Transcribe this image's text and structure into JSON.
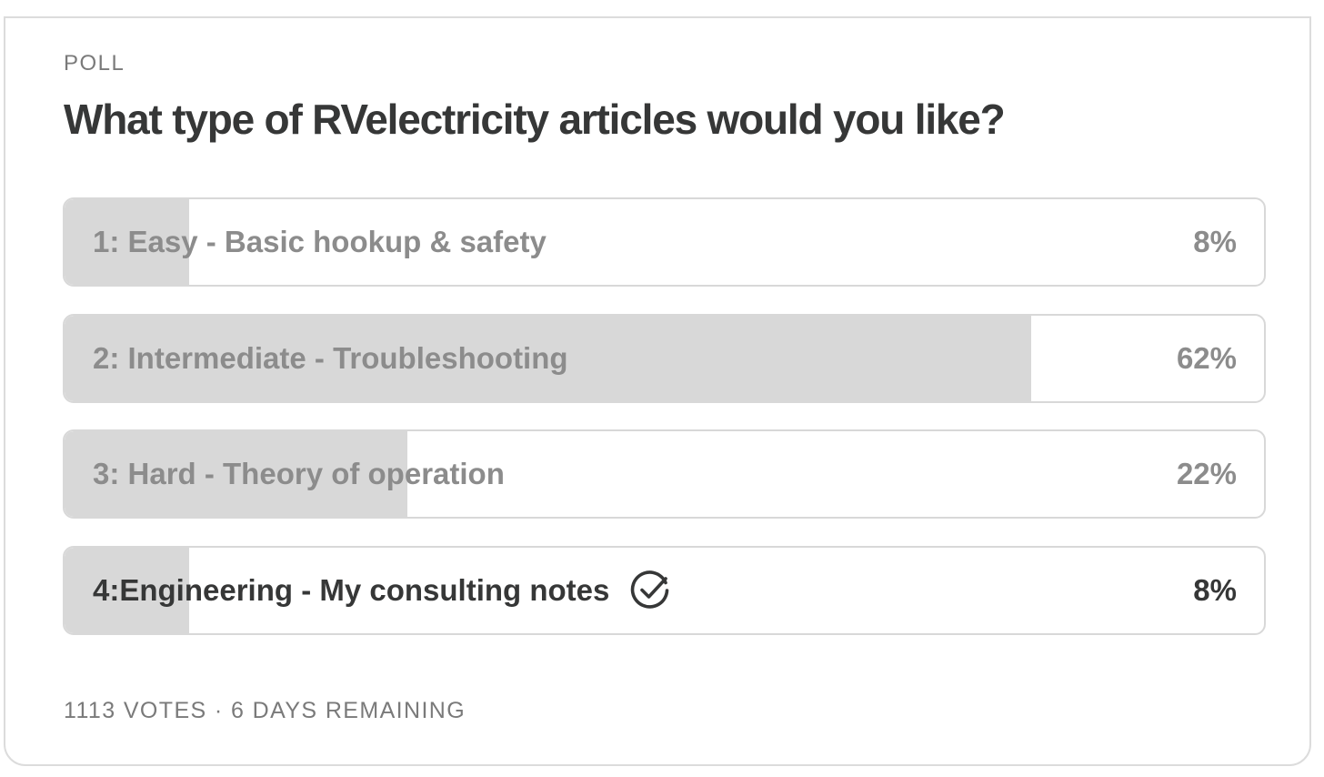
{
  "poll": {
    "kicker": "POLL",
    "question": "What type of RVelectricity articles would you like?",
    "options": [
      {
        "label": "1: Easy - Basic hookup & safety",
        "percent_label": "8%",
        "percent": 8,
        "selected": false
      },
      {
        "label": "2: Intermediate - Troubleshooting",
        "percent_label": "62%",
        "percent": 62,
        "selected": false
      },
      {
        "label": "3: Hard - Theory of operation",
        "percent_label": "22%",
        "percent": 22,
        "selected": false
      },
      {
        "label": "4:Engineering - My consulting notes",
        "percent_label": "8%",
        "percent": 8,
        "selected": true
      }
    ],
    "footer": "1113 VOTES · 6 DAYS REMAINING"
  },
  "colors": {
    "fill": "#d8d8d8",
    "text_muted": "#8c8c8c",
    "text_strong": "#363737",
    "border": "#d8d8d8"
  },
  "icons": {
    "selected_marker": "check-circle-icon"
  }
}
